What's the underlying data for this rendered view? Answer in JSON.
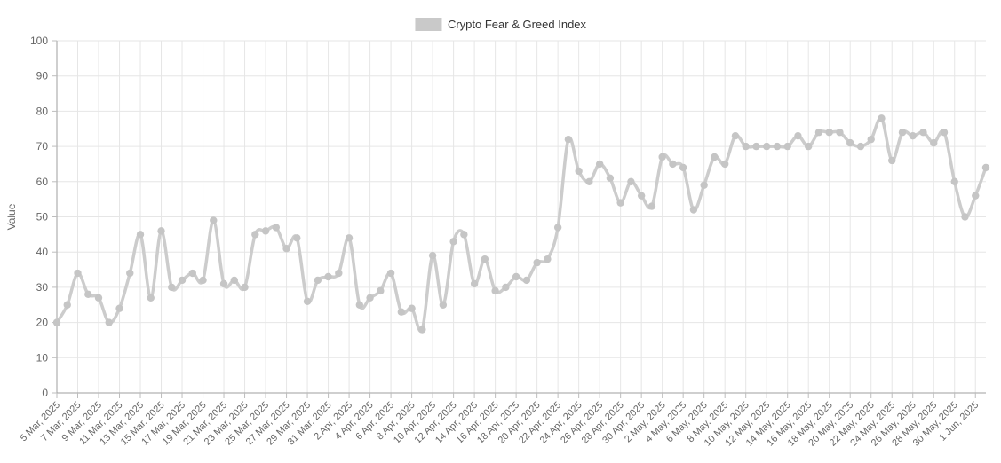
{
  "legend": {
    "label": "Crypto Fear & Greed Index"
  },
  "colors": {
    "background": "#ffffff",
    "line": "#cccccc",
    "marker": "#c5c5c5",
    "grid": "#e6e6e6",
    "axis": "#9f9f9f",
    "tick": "#bdbdbd",
    "label_text": "#666666",
    "legend_text": "#333333",
    "legend_swatch": "#c9c9c9"
  },
  "chart_data": {
    "type": "line",
    "title": "Crypto Fear & Greed Index",
    "xlabel": "",
    "ylabel": "Value",
    "ylim": [
      0,
      100
    ],
    "y_tick_step": 10,
    "x_tick_every": 2,
    "grid": true,
    "legend_position": "top-center",
    "line_style": "spline-with-markers",
    "x": [
      "5 Mar, 2025",
      "6 Mar, 2025",
      "7 Mar, 2025",
      "8 Mar, 2025",
      "9 Mar, 2025",
      "10 Mar, 2025",
      "11 Mar, 2025",
      "12 Mar, 2025",
      "13 Mar, 2025",
      "14 Mar, 2025",
      "15 Mar, 2025",
      "16 Mar, 2025",
      "17 Mar, 2025",
      "18 Mar, 2025",
      "19 Mar, 2025",
      "20 Mar, 2025",
      "21 Mar, 2025",
      "22 Mar, 2025",
      "23 Mar, 2025",
      "24 Mar, 2025",
      "25 Mar, 2025",
      "26 Mar, 2025",
      "27 Mar, 2025",
      "28 Mar, 2025",
      "29 Mar, 2025",
      "30 Mar, 2025",
      "31 Mar, 2025",
      "1 Apr, 2025",
      "2 Apr, 2025",
      "3 Apr, 2025",
      "4 Apr, 2025",
      "5 Apr, 2025",
      "6 Apr, 2025",
      "7 Apr, 2025",
      "8 Apr, 2025",
      "9 Apr, 2025",
      "10 Apr, 2025",
      "11 Apr, 2025",
      "12 Apr, 2025",
      "13 Apr, 2025",
      "14 Apr, 2025",
      "15 Apr, 2025",
      "16 Apr, 2025",
      "17 Apr, 2025",
      "18 Apr, 2025",
      "19 Apr, 2025",
      "20 Apr, 2025",
      "21 Apr, 2025",
      "22 Apr, 2025",
      "23 Apr, 2025",
      "24 Apr, 2025",
      "25 Apr, 2025",
      "26 Apr, 2025",
      "27 Apr, 2025",
      "28 Apr, 2025",
      "29 Apr, 2025",
      "30 Apr, 2025",
      "1 May, 2025",
      "2 May, 2025",
      "3 May, 2025",
      "4 May, 2025",
      "5 May, 2025",
      "6 May, 2025",
      "7 May, 2025",
      "8 May, 2025",
      "9 May, 2025",
      "10 May, 2025",
      "11 May, 2025",
      "12 May, 2025",
      "13 May, 2025",
      "14 May, 2025",
      "15 May, 2025",
      "16 May, 2025",
      "17 May, 2025",
      "18 May, 2025",
      "19 May, 2025",
      "20 May, 2025",
      "21 May, 2025",
      "22 May, 2025",
      "23 May, 2025",
      "24 May, 2025",
      "25 May, 2025",
      "26 May, 2025",
      "27 May, 2025",
      "28 May, 2025",
      "29 May, 2025",
      "30 May, 2025",
      "31 May, 2025",
      "1 Jun, 2025",
      "2 Jun, 2025"
    ],
    "values": [
      20,
      25,
      34,
      28,
      27,
      20,
      24,
      34,
      45,
      27,
      46,
      30,
      32,
      34,
      32,
      49,
      31,
      32,
      30,
      45,
      46,
      47,
      41,
      44,
      26,
      32,
      33,
      34,
      44,
      25,
      27,
      29,
      34,
      23,
      24,
      18,
      39,
      25,
      43,
      45,
      31,
      38,
      29,
      30,
      33,
      32,
      37,
      38,
      47,
      72,
      63,
      60,
      65,
      61,
      54,
      60,
      56,
      53,
      67,
      65,
      64,
      52,
      59,
      67,
      65,
      73,
      70,
      70,
      70,
      70,
      70,
      73,
      70,
      74,
      74,
      74,
      71,
      70,
      72,
      78,
      66,
      74,
      73,
      74,
      71,
      74,
      60,
      50,
      56,
      64
    ]
  }
}
